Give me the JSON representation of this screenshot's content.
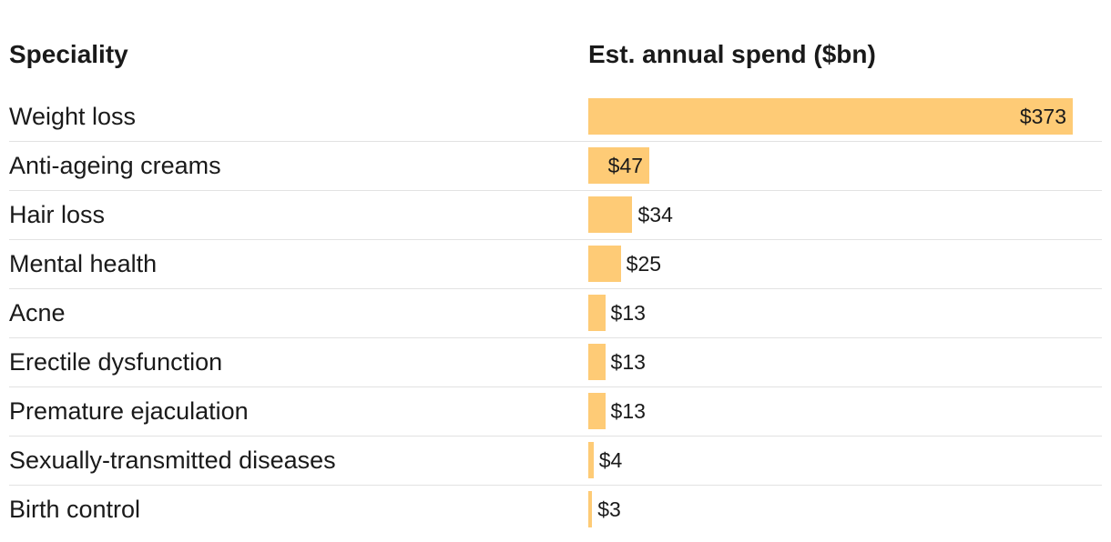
{
  "header": {
    "label_col": "Speciality",
    "value_col": "Est. annual spend ($bn)"
  },
  "chart_data": {
    "type": "table",
    "columns": [
      "Speciality",
      "Est. annual spend ($bn)"
    ],
    "categories": [
      "Weight loss",
      "Anti-ageing creams",
      "Hair loss",
      "Mental health",
      "Acne",
      "Erectile dysfunction",
      "Premature ejaculation",
      "Sexually-transmitted diseases",
      "Birth control"
    ],
    "values": [
      373,
      47,
      34,
      25,
      13,
      13,
      13,
      4,
      3
    ],
    "value_labels": [
      "$373",
      "$47",
      "$34",
      "$25",
      "$13",
      "$13",
      "$13",
      "$4",
      "$3"
    ],
    "bar_color": "#fecb76"
  }
}
